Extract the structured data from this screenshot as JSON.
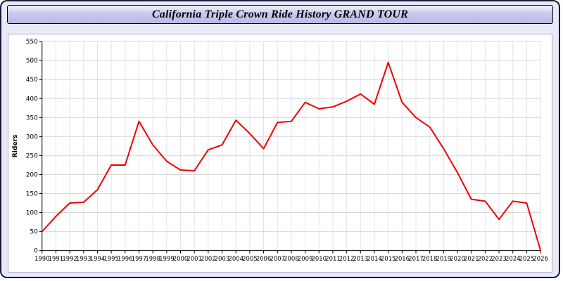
{
  "title": "California Triple Crown Ride History GRAND TOUR",
  "chart_data": {
    "type": "line",
    "title": "California Triple Crown Ride History GRAND TOUR",
    "xlabel": "",
    "ylabel": "Riders",
    "ylim": [
      0,
      550
    ],
    "y_tick_step": 50,
    "grid": true,
    "legend": "none",
    "line_color": "#ee0000",
    "x": [
      1990,
      1991,
      1992,
      1993,
      1994,
      1995,
      1996,
      1997,
      1998,
      1999,
      2000,
      2001,
      2002,
      2003,
      2004,
      2005,
      2006,
      2007,
      2008,
      2009,
      2010,
      2011,
      2012,
      2013,
      2014,
      2015,
      2016,
      2017,
      2018,
      2019,
      2020,
      2021,
      2022,
      2023,
      2024,
      2025,
      2026
    ],
    "values": [
      50,
      90,
      125,
      127,
      160,
      225,
      225,
      340,
      278,
      235,
      212,
      210,
      265,
      278,
      343,
      308,
      268,
      337,
      340,
      390,
      373,
      378,
      393,
      412,
      385,
      495,
      390,
      350,
      325,
      268,
      205,
      135,
      130,
      82,
      130,
      125,
      0
    ]
  },
  "colors": {
    "page_background": "#e9e9f7",
    "title_bar": "#c9c9ef",
    "line": "#ee0000",
    "grid": "#d9d9d9",
    "axis": "#000000"
  }
}
